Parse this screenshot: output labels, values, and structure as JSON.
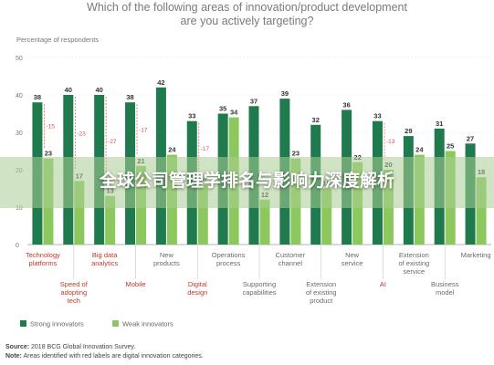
{
  "banner": {
    "text": "全球公司管理学排名与影响力深度解析"
  },
  "chart_data": {
    "type": "bar",
    "title_line1": "Which of the following areas of innovation/product development",
    "title_line2": "are you actively targeting?",
    "ylabel": "Percentage of respondents",
    "ylim": [
      0,
      50
    ],
    "yticks": [
      0,
      10,
      20,
      30,
      40,
      50
    ],
    "grid": true,
    "legend_position": "bottom-left",
    "categories": [
      {
        "label": [
          "Technology",
          "platforms"
        ],
        "red": true
      },
      {
        "label": [
          "Speed of",
          "adopting",
          "tech"
        ],
        "red": true
      },
      {
        "label": [
          "Big data",
          "analytics"
        ],
        "red": true
      },
      {
        "label": [
          "Mobile"
        ],
        "red": true
      },
      {
        "label": [
          "New",
          "products"
        ],
        "red": false
      },
      {
        "label": [
          "Digital",
          "design"
        ],
        "red": true
      },
      {
        "label": [
          "Operations",
          "process"
        ],
        "red": false
      },
      {
        "label": [
          "Supporting",
          "capabilities"
        ],
        "red": false
      },
      {
        "label": [
          "Customer",
          "channel"
        ],
        "red": false
      },
      {
        "label": [
          "Extension",
          "of existing",
          "product"
        ],
        "red": false
      },
      {
        "label": [
          "New",
          "service"
        ],
        "red": false
      },
      {
        "label": [
          "AI"
        ],
        "red": true
      },
      {
        "label": [
          "Extension",
          "of existing",
          "service"
        ],
        "red": false
      },
      {
        "label": [
          "Business",
          "model"
        ],
        "red": false
      },
      {
        "label": [
          "Marketing"
        ],
        "red": false
      }
    ],
    "series": [
      {
        "name": "Strong innovators",
        "color": "#1f7a4d",
        "values": [
          38,
          40,
          40,
          38,
          42,
          33,
          35,
          37,
          39,
          32,
          36,
          33,
          29,
          31,
          27
        ]
      },
      {
        "name": "Weak innovators",
        "color": "#8cc85e",
        "values": [
          23,
          17,
          13,
          21,
          24,
          16,
          34,
          12,
          23,
          15,
          22,
          20,
          24,
          25,
          18
        ]
      }
    ],
    "gaps": [
      "-15",
      "-23",
      "-27",
      "-17",
      "",
      "-17",
      "",
      "",
      "",
      "",
      "",
      "-13",
      "",
      "",
      ""
    ],
    "gap_color": "#d9534f"
  },
  "footer": {
    "source_label": "Source:",
    "source_text": "2018 BCG Global Innovation Survey.",
    "note_label": "Note:",
    "note_text": "Areas identified with red labels are digital innovation categories."
  }
}
